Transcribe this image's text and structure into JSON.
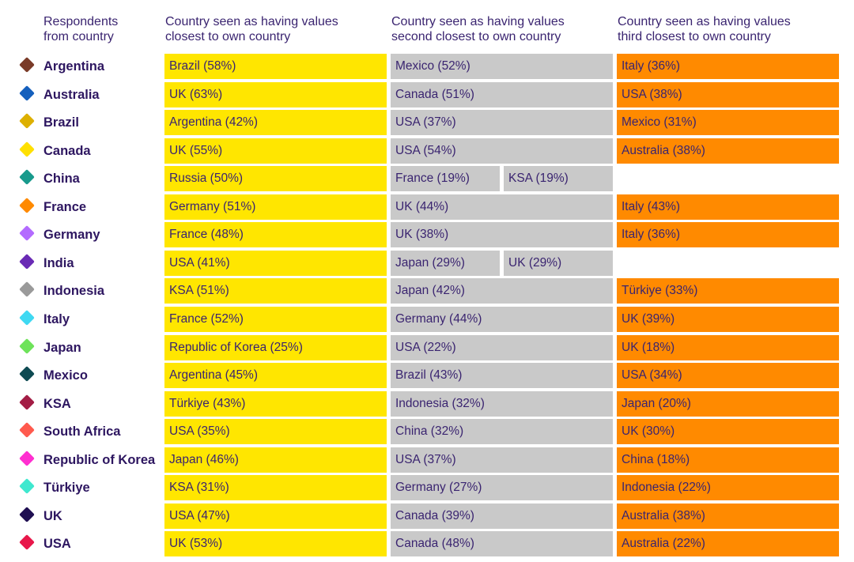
{
  "chart_data": {
    "type": "table",
    "headers": [
      "Respondents\nfrom country",
      "Country seen as having values\nclosest to own country",
      "Country seen as having values\nsecond closest to own country",
      "Country seen as having values\nthird closest to own country"
    ],
    "colors": {
      "closest": "#ffe600",
      "second": "#c9c9c9",
      "third": "#ff8a00"
    },
    "rows": [
      {
        "country": "Argentina",
        "marker": "#7a3b28",
        "closest": [
          "Brazil (58%)"
        ],
        "second": [
          "Mexico (52%)"
        ],
        "third": [
          "Italy (36%)"
        ]
      },
      {
        "country": "Australia",
        "marker": "#1560bd",
        "closest": [
          "UK (63%)"
        ],
        "second": [
          "Canada (51%)"
        ],
        "third": [
          "USA (38%)"
        ]
      },
      {
        "country": "Brazil",
        "marker": "#ddb000",
        "closest": [
          "Argentina (42%)"
        ],
        "second": [
          "USA (37%)"
        ],
        "third": [
          "Mexico (31%)"
        ]
      },
      {
        "country": "Canada",
        "marker": "#ffe000",
        "closest": [
          "UK (55%)"
        ],
        "second": [
          "USA (54%)"
        ],
        "third": [
          "Australia (38%)"
        ]
      },
      {
        "country": "China",
        "marker": "#189a8c",
        "closest": [
          "Russia (50%)"
        ],
        "second": [
          "France (19%)",
          "KSA (19%)"
        ],
        "third": []
      },
      {
        "country": "France",
        "marker": "#ff8a00",
        "closest": [
          "Germany (51%)"
        ],
        "second": [
          "UK (44%)"
        ],
        "third": [
          "Italy (43%)"
        ]
      },
      {
        "country": "Germany",
        "marker": "#b36bff",
        "closest": [
          "France (48%)"
        ],
        "second": [
          "UK (38%)"
        ],
        "third": [
          "Italy (36%)"
        ]
      },
      {
        "country": "India",
        "marker": "#6a2bb5",
        "closest": [
          "USA (41%)"
        ],
        "second": [
          "Japan (29%)",
          "UK (29%)"
        ],
        "third": []
      },
      {
        "country": "Indonesia",
        "marker": "#9a9a9a",
        "closest": [
          "KSA (51%)"
        ],
        "second": [
          "Japan (42%)"
        ],
        "third": [
          "Türkiye (33%)"
        ]
      },
      {
        "country": "Italy",
        "marker": "#3fd9f2",
        "closest": [
          "France (52%)"
        ],
        "second": [
          "Germany (44%)"
        ],
        "third": [
          "UK (39%)"
        ]
      },
      {
        "country": "Japan",
        "marker": "#6ee35a",
        "closest": [
          "Republic of Korea (25%)"
        ],
        "second": [
          "USA (22%)"
        ],
        "third": [
          "UK (18%)"
        ]
      },
      {
        "country": "Mexico",
        "marker": "#0e4a52",
        "closest": [
          "Argentina (45%)"
        ],
        "second": [
          "Brazil (43%)"
        ],
        "third": [
          "USA (34%)"
        ]
      },
      {
        "country": "KSA",
        "marker": "#a31d45",
        "closest": [
          "Türkiye (43%)"
        ],
        "second": [
          "Indonesia (32%)"
        ],
        "third": [
          "Japan (20%)"
        ]
      },
      {
        "country": "South Africa",
        "marker": "#ff5a4e",
        "closest": [
          "USA (35%)"
        ],
        "second": [
          "China (32%)"
        ],
        "third": [
          "UK (30%)"
        ]
      },
      {
        "country": "Republic of Korea",
        "marker": "#ff2fd0",
        "closest": [
          "Japan (46%)"
        ],
        "second": [
          "USA (37%)"
        ],
        "third": [
          "China (18%)"
        ]
      },
      {
        "country": "Türkiye",
        "marker": "#3fe8cf",
        "closest": [
          "KSA (31%)"
        ],
        "second": [
          "Germany (27%)"
        ],
        "third": [
          "Indonesia (22%)"
        ]
      },
      {
        "country": "UK",
        "marker": "#1f0f52",
        "closest": [
          "USA (47%)"
        ],
        "second": [
          "Canada (39%)"
        ],
        "third": [
          "Australia (38%)"
        ]
      },
      {
        "country": "USA",
        "marker": "#e8174a",
        "closest": [
          "UK (53%)"
        ],
        "second": [
          "Canada (48%)"
        ],
        "third": [
          "Australia (22%)"
        ]
      }
    ]
  }
}
